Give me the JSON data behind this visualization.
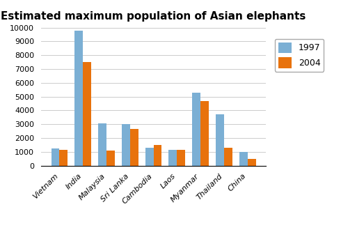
{
  "title": "Estimated maximum population of Asian elephants",
  "categories": [
    "Vietnam",
    "India",
    "Malaysia",
    "Sri Lanka",
    "Cambodia",
    "Laos",
    "Myanmar",
    "Thailand",
    "China"
  ],
  "values_1997": [
    1250,
    9800,
    3050,
    3000,
    1300,
    1150,
    5300,
    3700,
    1000
  ],
  "values_2004": [
    1150,
    7500,
    1080,
    2650,
    1500,
    1150,
    4700,
    1300,
    480
  ],
  "color_1997": "#7BAFD4",
  "color_2004": "#E8720C",
  "legend_labels": [
    "1997",
    "2004"
  ],
  "ylim": [
    0,
    10000
  ],
  "yticks": [
    0,
    1000,
    2000,
    3000,
    4000,
    5000,
    6000,
    7000,
    8000,
    9000,
    10000
  ],
  "bar_width": 0.35,
  "title_fontsize": 11,
  "tick_fontsize": 8,
  "legend_fontsize": 9,
  "background_color": "#ffffff"
}
